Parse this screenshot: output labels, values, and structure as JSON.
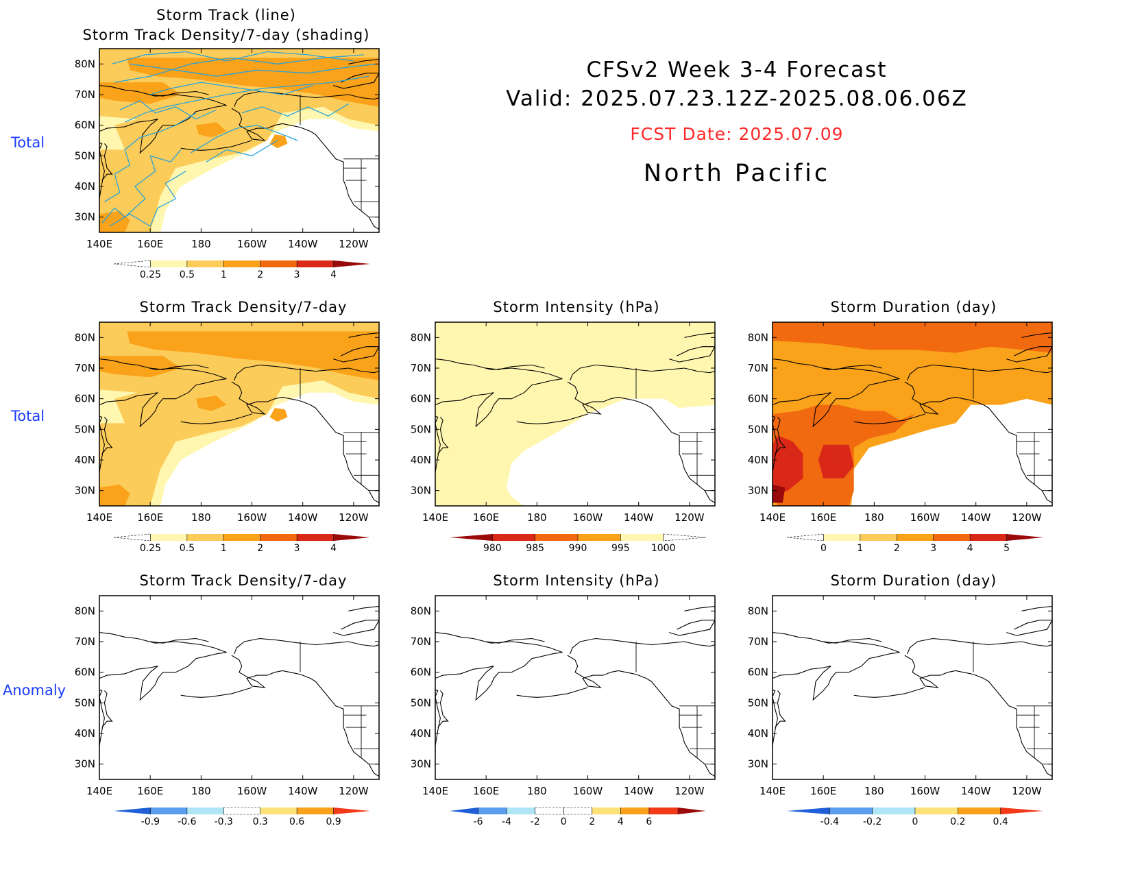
{
  "header": {
    "title_line1": "CFSv2 Week 3-4 Forecast",
    "title_line2": "Valid: 2025.07.23.12Z-2025.08.06.06Z",
    "fcst_date": "FCST Date: 2025.07.09",
    "region": "North Pacific"
  },
  "row_labels": [
    "Total",
    "Total",
    "Anomaly"
  ],
  "axes": {
    "lon_ticks": [
      "140E",
      "160E",
      "180",
      "160W",
      "140W",
      "120W"
    ],
    "lat_ticks": [
      "80N",
      "70N",
      "60N",
      "50N",
      "40N",
      "30N"
    ]
  },
  "panels": [
    {
      "id": "p0",
      "title_l1": "Storm Track (line)",
      "title_l2": "Storm Track Density/7-day (shading)",
      "type": "density_tracks",
      "colorbar": "cb_density"
    },
    {
      "id": "p1",
      "title_l1": "Storm Track Density/7-day",
      "type": "density",
      "colorbar": "cb_density"
    },
    {
      "id": "p2",
      "title_l1": "Storm Intensity (hPa)",
      "type": "intensity",
      "colorbar": "cb_intensity"
    },
    {
      "id": "p3",
      "title_l1": "Storm Duration (day)",
      "type": "duration",
      "colorbar": "cb_duration"
    },
    {
      "id": "p4",
      "title_l1": "Storm Track Density/7-day",
      "type": "anom_density",
      "colorbar": "cb_anom_density"
    },
    {
      "id": "p5",
      "title_l1": "Storm Intensity (hPa)",
      "type": "anom_intensity",
      "colorbar": "cb_anom_intensity"
    },
    {
      "id": "p6",
      "title_l1": "Storm Duration (day)",
      "type": "anom_duration",
      "colorbar": "cb_anom_duration"
    }
  ],
  "colorbars": {
    "cb_density": {
      "labels": [
        "0.25",
        "0.5",
        "1",
        "2",
        "3",
        "4"
      ],
      "colors": [
        "#ffffff",
        "#fff7b0",
        "#fccc5a",
        "#f9a21a",
        "#f26a10",
        "#d92818",
        "#9b0a0a"
      ]
    },
    "cb_intensity": {
      "labels": [
        "980",
        "985",
        "990",
        "995",
        "1000"
      ],
      "colors": [
        "#9b0a0a",
        "#d92818",
        "#f26a10",
        "#f9a21a",
        "#fff7b0",
        "#ffffff"
      ]
    },
    "cb_duration": {
      "labels": [
        "0",
        "1",
        "2",
        "3",
        "4",
        "5"
      ],
      "colors": [
        "#ffffff",
        "#fff7b0",
        "#fccc5a",
        "#f9a21a",
        "#f26a10",
        "#d92818",
        "#9b0a0a"
      ]
    },
    "cb_anom_density": {
      "labels": [
        "-0.9",
        "-0.6",
        "-0.3",
        "0.3",
        "0.6",
        "0.9"
      ],
      "colors": [
        "#1e5fd8",
        "#5a9ef0",
        "#aee6f5",
        "#ffffff",
        "#fde27a",
        "#f9a21a",
        "#f23a18"
      ]
    },
    "cb_anom_intensity": {
      "labels": [
        "-6",
        "-4",
        "-2",
        "0",
        "2",
        "4",
        "6"
      ],
      "colors": [
        "#1e5fd8",
        "#5a9ef0",
        "#aee6f5",
        "#ffffff",
        "#ffffff",
        "#fde27a",
        "#f9a21a",
        "#f23a18",
        "#9b0a0a"
      ]
    },
    "cb_anom_duration": {
      "labels": [
        "-0.4",
        "-0.2",
        "0",
        "0.2",
        "0.4"
      ],
      "colors": [
        "#1e5fd8",
        "#5a9ef0",
        "#aee6f5",
        "#fde27a",
        "#f9a21a",
        "#f23a18"
      ]
    }
  },
  "colors": {
    "land_line": "#000000",
    "track_line": "#29a3d6",
    "light_yellow": "#fff7b0",
    "yellow": "#fde27a",
    "light_orange": "#fccc5a",
    "orange": "#f9a21a",
    "dark_orange": "#f26a10",
    "red": "#d92818",
    "dark_red": "#9b0a0a",
    "light_blue": "#aee6f5",
    "mid_blue": "#5a9ef0",
    "blue": "#1e5fd8"
  }
}
